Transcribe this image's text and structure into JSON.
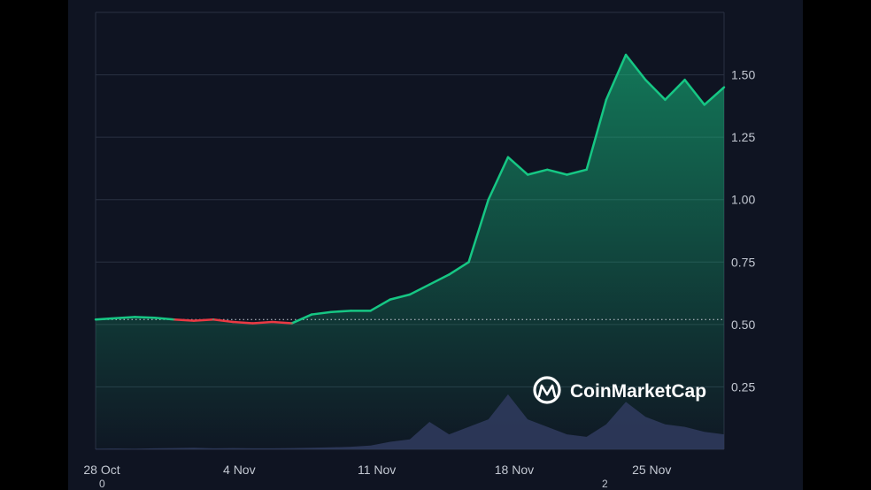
{
  "watermark": {
    "text": "CoinMarketCap",
    "icon": "coinmarketcap-logo-icon"
  },
  "colors": {
    "background": "#0f1422",
    "grid": "#2a3142",
    "up": "#16c784",
    "down": "#ea3943",
    "volume": "#2f3a5c",
    "baseline": "#c8ccd6",
    "tick_text": "#c3c8d2"
  },
  "stray_marks": [
    "0",
    "2"
  ],
  "chart_data": {
    "type": "area",
    "title": "",
    "xlabel": "",
    "ylabel": "",
    "x_ticks": [
      "28 Oct",
      "4 Nov",
      "11 Nov",
      "18 Nov",
      "25 Nov"
    ],
    "y_ticks": [
      "0.25",
      "0.50",
      "0.75",
      "1.00",
      "1.25",
      "1.50"
    ],
    "ylim": [
      0,
      1.75
    ],
    "y_axis_position": "right",
    "grid": true,
    "baseline_price": 0.52,
    "x_range": [
      "2024-10-28",
      "2024-11-29"
    ],
    "series": [
      {
        "kind": "price",
        "points": [
          [
            "2024-10-28",
            0.52
          ],
          [
            "2024-10-29",
            0.525
          ],
          [
            "2024-10-30",
            0.53
          ],
          [
            "2024-10-31",
            0.527
          ],
          [
            "2024-11-01",
            0.52
          ],
          [
            "2024-11-02",
            0.515
          ],
          [
            "2024-11-03",
            0.52
          ],
          [
            "2024-11-04",
            0.51
          ],
          [
            "2024-11-05",
            0.505
          ],
          [
            "2024-11-06",
            0.51
          ],
          [
            "2024-11-07",
            0.505
          ],
          [
            "2024-11-08",
            0.54
          ],
          [
            "2024-11-09",
            0.55
          ],
          [
            "2024-11-10",
            0.555
          ],
          [
            "2024-11-11",
            0.555
          ],
          [
            "2024-11-12",
            0.6
          ],
          [
            "2024-11-13",
            0.62
          ],
          [
            "2024-11-14",
            0.66
          ],
          [
            "2024-11-15",
            0.7
          ],
          [
            "2024-11-16",
            0.75
          ],
          [
            "2024-11-17",
            1.0
          ],
          [
            "2024-11-18",
            1.17
          ],
          [
            "2024-11-19",
            1.1
          ],
          [
            "2024-11-20",
            1.12
          ],
          [
            "2024-11-21",
            1.1
          ],
          [
            "2024-11-22",
            1.12
          ],
          [
            "2024-11-23",
            1.4
          ],
          [
            "2024-11-24",
            1.58
          ],
          [
            "2024-11-25",
            1.48
          ],
          [
            "2024-11-26",
            1.4
          ],
          [
            "2024-11-27",
            1.48
          ],
          [
            "2024-11-28",
            1.38
          ],
          [
            "2024-11-29",
            1.45
          ]
        ]
      },
      {
        "kind": "volume",
        "points": [
          [
            "2024-10-28",
            0.002
          ],
          [
            "2024-10-29",
            0.003
          ],
          [
            "2024-10-30",
            0.002
          ],
          [
            "2024-10-31",
            0.004
          ],
          [
            "2024-11-01",
            0.005
          ],
          [
            "2024-11-02",
            0.006
          ],
          [
            "2024-11-03",
            0.004
          ],
          [
            "2024-11-04",
            0.005
          ],
          [
            "2024-11-05",
            0.004
          ],
          [
            "2024-11-06",
            0.004
          ],
          [
            "2024-11-07",
            0.005
          ],
          [
            "2024-11-08",
            0.006
          ],
          [
            "2024-11-09",
            0.008
          ],
          [
            "2024-11-10",
            0.01
          ],
          [
            "2024-11-11",
            0.015
          ],
          [
            "2024-11-12",
            0.03
          ],
          [
            "2024-11-13",
            0.04
          ],
          [
            "2024-11-14",
            0.11
          ],
          [
            "2024-11-15",
            0.06
          ],
          [
            "2024-11-16",
            0.09
          ],
          [
            "2024-11-17",
            0.12
          ],
          [
            "2024-11-18",
            0.22
          ],
          [
            "2024-11-19",
            0.12
          ],
          [
            "2024-11-20",
            0.09
          ],
          [
            "2024-11-21",
            0.06
          ],
          [
            "2024-11-22",
            0.05
          ],
          [
            "2024-11-23",
            0.1
          ],
          [
            "2024-11-24",
            0.19
          ],
          [
            "2024-11-25",
            0.13
          ],
          [
            "2024-11-26",
            0.1
          ],
          [
            "2024-11-27",
            0.09
          ],
          [
            "2024-11-28",
            0.07
          ],
          [
            "2024-11-29",
            0.06
          ]
        ]
      }
    ]
  }
}
